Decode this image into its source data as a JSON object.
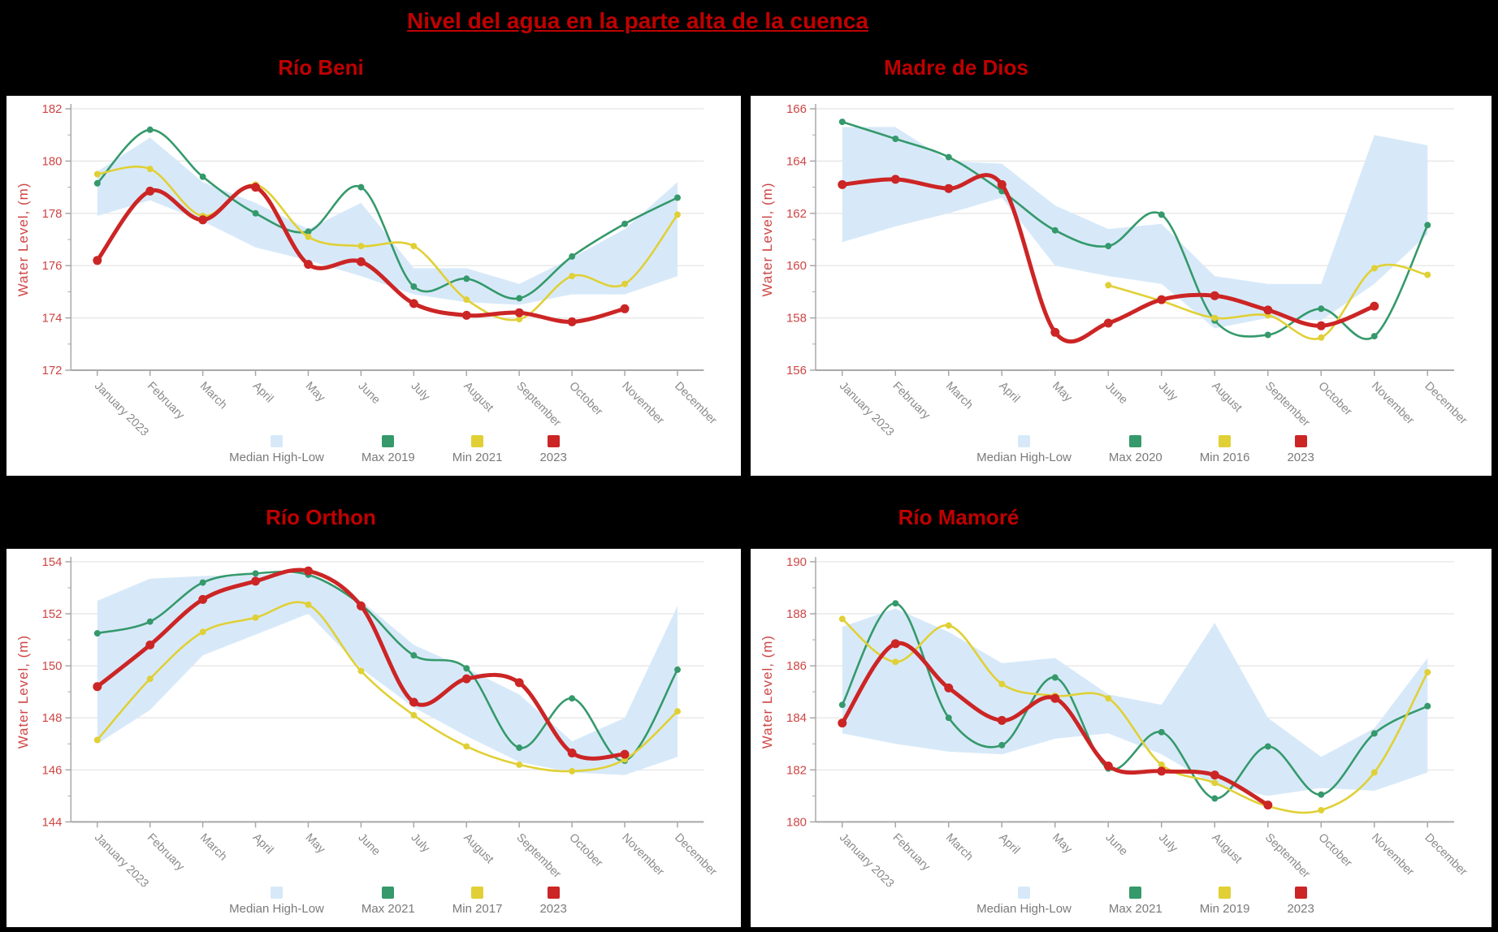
{
  "title": "Nivel del agua en la parte alta de la cuenca",
  "y_axis_title": "Water Level, (m)",
  "colors": {
    "background": "#000000",
    "panel": "#ffffff",
    "title_red": "#c00000",
    "band": "#d7e9f9",
    "max_green": "#35996b",
    "min_yellow": "#e0d036",
    "current_red": "#cc2525",
    "grid": "#e3e3e3",
    "axis": "#a8a8a8",
    "y_tick_label": "#cf4444",
    "x_tick_label": "#8a8a8a",
    "legend_text": "#7a7a7a"
  },
  "chart_data": [
    {
      "type": "line",
      "title": "Río Beni",
      "ylabel": "Water Level, (m)",
      "ylim": [
        172,
        182
      ],
      "ytick_step": 2,
      "grid": true,
      "legend_position": "bottom",
      "categories": [
        "January 2023",
        "February",
        "March",
        "April",
        "May",
        "June",
        "July",
        "August",
        "September",
        "October",
        "November",
        "December"
      ],
      "legend": {
        "band": "Median High-Low",
        "max": "Max 2019",
        "min": "Min 2021",
        "current": "2023"
      },
      "band_high": [
        179.6,
        180.9,
        179.2,
        178.4,
        177.4,
        178.4,
        175.9,
        175.9,
        175.3,
        176.3,
        177.4,
        179.2
      ],
      "band_low": [
        177.9,
        178.5,
        177.7,
        176.7,
        176.2,
        175.6,
        174.9,
        174.6,
        174.5,
        174.9,
        174.9,
        175.6
      ],
      "series": [
        {
          "key": "max",
          "name": "Max 2019",
          "values": [
            179.15,
            181.2,
            179.4,
            178.0,
            177.3,
            179.0,
            175.2,
            175.5,
            174.75,
            176.35,
            177.6,
            178.6
          ]
        },
        {
          "key": "min",
          "name": "Min 2021",
          "values": [
            179.5,
            179.7,
            177.9,
            179.1,
            177.1,
            176.75,
            176.75,
            174.7,
            173.95,
            175.6,
            175.3,
            177.95
          ]
        },
        {
          "key": "current",
          "name": "2023",
          "values": [
            176.2,
            178.85,
            177.75,
            179.0,
            176.05,
            176.15,
            174.55,
            174.1,
            174.2,
            173.85,
            174.35,
            null
          ]
        }
      ]
    },
    {
      "type": "line",
      "title": "Madre de Dios",
      "ylabel": "Water Level, (m)",
      "ylim": [
        156,
        166
      ],
      "ytick_step": 2,
      "grid": true,
      "legend_position": "bottom",
      "categories": [
        "January 2023",
        "February",
        "March",
        "April",
        "May",
        "June",
        "July",
        "August",
        "September",
        "October",
        "November",
        "December"
      ],
      "legend": {
        "band": "Median High-Low",
        "max": "Max 2020",
        "min": "Min 2016",
        "current": "2023"
      },
      "band_high": [
        165.3,
        165.3,
        164.0,
        163.9,
        162.3,
        161.4,
        161.6,
        159.6,
        159.3,
        159.3,
        165.0,
        164.6
      ],
      "band_low": [
        160.9,
        161.5,
        162.0,
        162.6,
        160.0,
        159.6,
        159.3,
        157.6,
        158.0,
        157.9,
        159.3,
        161.2
      ],
      "series": [
        {
          "key": "max",
          "name": "Max 2020",
          "values": [
            165.5,
            164.85,
            164.15,
            162.85,
            161.35,
            160.75,
            161.95,
            157.9,
            157.35,
            158.35,
            157.3,
            161.55
          ]
        },
        {
          "key": "min",
          "name": "Min 2016",
          "values": [
            null,
            null,
            null,
            null,
            null,
            159.25,
            158.65,
            158.0,
            158.1,
            157.25,
            159.9,
            159.65
          ]
        },
        {
          "key": "current",
          "name": "2023",
          "values": [
            163.1,
            163.3,
            162.95,
            163.1,
            157.45,
            157.8,
            158.7,
            158.85,
            158.3,
            157.7,
            158.45,
            null
          ]
        }
      ]
    },
    {
      "type": "line",
      "title": "Río Orthon",
      "ylabel": "Water Level, (m)",
      "ylim": [
        144,
        154
      ],
      "ytick_step": 2,
      "grid": true,
      "legend_position": "bottom",
      "categories": [
        "January 2023",
        "February",
        "March",
        "April",
        "May",
        "June",
        "July",
        "August",
        "September",
        "October",
        "November",
        "December"
      ],
      "legend": {
        "band": "Median High-Low",
        "max": "Max 2021",
        "min": "Min 2017",
        "current": "2023"
      },
      "band_high": [
        152.5,
        153.35,
        153.45,
        153.5,
        153.55,
        152.5,
        150.8,
        149.9,
        148.9,
        147.1,
        148.0,
        152.3
      ],
      "band_low": [
        147.0,
        148.3,
        150.4,
        151.2,
        152.0,
        149.9,
        148.4,
        147.3,
        146.3,
        145.9,
        145.8,
        146.5
      ],
      "series": [
        {
          "key": "max",
          "name": "Max 2021",
          "values": [
            151.25,
            151.7,
            153.2,
            153.55,
            153.5,
            152.35,
            150.4,
            149.9,
            146.85,
            148.75,
            146.35,
            149.85
          ]
        },
        {
          "key": "min",
          "name": "Min 2017",
          "values": [
            147.15,
            149.5,
            151.3,
            151.85,
            152.35,
            149.8,
            148.1,
            146.9,
            146.2,
            145.95,
            146.4,
            148.25
          ]
        },
        {
          "key": "current",
          "name": "2023",
          "values": [
            149.2,
            150.8,
            152.55,
            153.25,
            153.65,
            152.3,
            148.6,
            149.5,
            149.35,
            146.65,
            146.6,
            null
          ]
        }
      ]
    },
    {
      "type": "line",
      "title": "Río Mamoré",
      "ylabel": "Water Level, (m)",
      "ylim": [
        180,
        190
      ],
      "ytick_step": 2,
      "grid": true,
      "legend_position": "bottom",
      "categories": [
        "January 2023",
        "February",
        "March",
        "April",
        "May",
        "June",
        "July",
        "August",
        "September",
        "October",
        "November",
        "December"
      ],
      "legend": {
        "band": "Median High-Low",
        "max": "Max 2021",
        "min": "Min 2019",
        "current": "2023"
      },
      "band_high": [
        187.5,
        188.2,
        187.3,
        186.1,
        186.3,
        184.9,
        184.5,
        187.65,
        184.0,
        182.5,
        183.6,
        186.3
      ],
      "band_low": [
        183.4,
        183.0,
        182.7,
        182.6,
        183.2,
        183.4,
        182.6,
        181.4,
        181.0,
        181.3,
        181.2,
        181.9
      ],
      "series": [
        {
          "key": "max",
          "name": "Max 2021",
          "values": [
            184.5,
            188.4,
            184.0,
            182.95,
            185.55,
            182.05,
            183.45,
            180.9,
            182.9,
            181.05,
            183.4,
            184.45
          ]
        },
        {
          "key": "min",
          "name": "Min 2019",
          "values": [
            187.8,
            186.15,
            187.55,
            185.3,
            184.85,
            184.75,
            182.2,
            181.5,
            180.6,
            180.45,
            181.9,
            185.75
          ]
        },
        {
          "key": "current",
          "name": "2023",
          "values": [
            183.8,
            186.85,
            185.15,
            183.9,
            184.75,
            182.15,
            181.95,
            181.8,
            180.65,
            null,
            null,
            null
          ]
        }
      ]
    }
  ]
}
